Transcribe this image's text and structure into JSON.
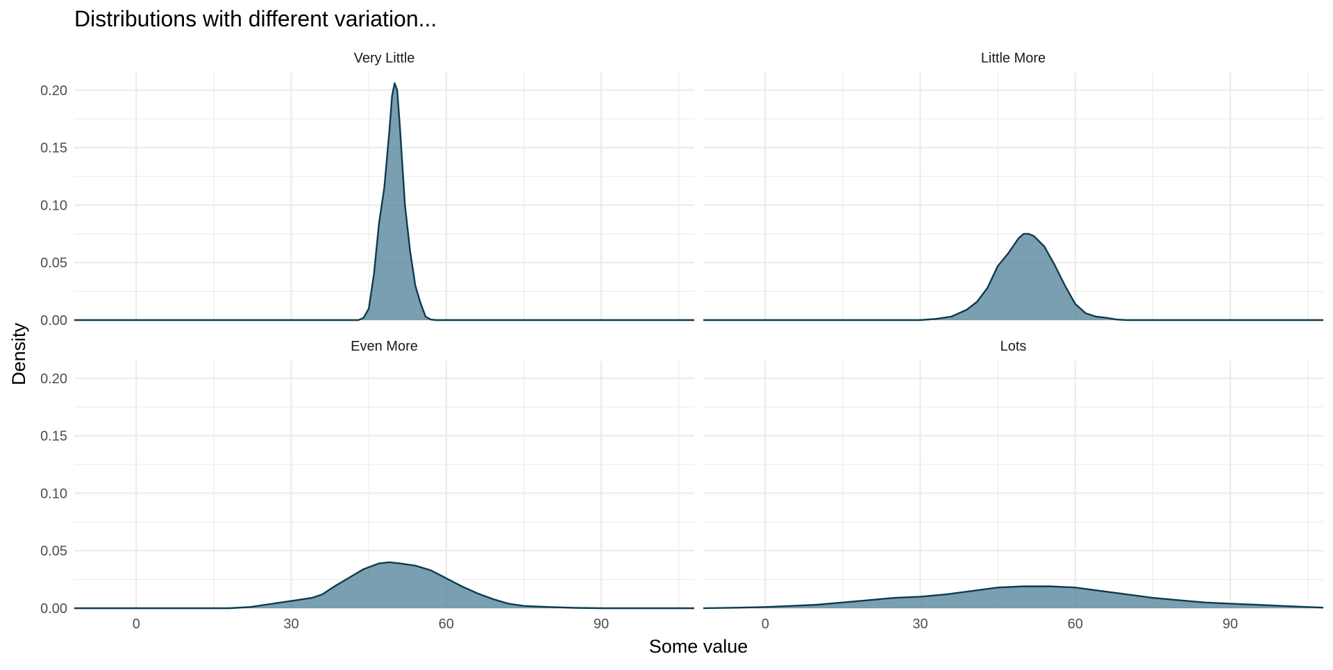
{
  "chart_data": {
    "type": "area",
    "title": "Distributions with different variation...",
    "xlabel": "Some value",
    "ylabel": "Density",
    "xlim": [
      -12,
      108
    ],
    "ylim": [
      0,
      0.215
    ],
    "x_ticks": [
      0,
      30,
      60,
      90
    ],
    "x_tick_labels": [
      "0",
      "30",
      "60",
      "90"
    ],
    "y_ticks": [
      0,
      0.05,
      0.1,
      0.15,
      0.2
    ],
    "y_tick_labels": [
      "0.00",
      "0.05",
      "0.10",
      "0.15",
      "0.20"
    ],
    "grid": true,
    "fill_color": "#4d7f96",
    "line_color": "#0d3a4f",
    "panels": [
      {
        "name": "Very Little",
        "points": [
          [
            -12,
            0
          ],
          [
            43,
            0
          ],
          [
            44,
            0.002
          ],
          [
            45,
            0.01
          ],
          [
            46,
            0.04
          ],
          [
            47,
            0.085
          ],
          [
            48,
            0.115
          ],
          [
            49,
            0.165
          ],
          [
            49.5,
            0.195
          ],
          [
            50,
            0.206
          ],
          [
            50.5,
            0.2
          ],
          [
            51,
            0.17
          ],
          [
            52,
            0.1
          ],
          [
            53,
            0.06
          ],
          [
            54,
            0.03
          ],
          [
            55,
            0.015
          ],
          [
            56,
            0.003
          ],
          [
            57,
            0.0005
          ],
          [
            58,
            0
          ],
          [
            108,
            0
          ]
        ]
      },
      {
        "name": "Little More",
        "points": [
          [
            -12,
            0
          ],
          [
            30,
            0
          ],
          [
            33,
            0.001
          ],
          [
            36,
            0.003
          ],
          [
            39,
            0.009
          ],
          [
            41,
            0.016
          ],
          [
            43,
            0.028
          ],
          [
            45,
            0.047
          ],
          [
            47,
            0.058
          ],
          [
            49,
            0.071
          ],
          [
            50,
            0.075
          ],
          [
            51,
            0.075
          ],
          [
            52,
            0.073
          ],
          [
            54,
            0.064
          ],
          [
            56,
            0.048
          ],
          [
            58,
            0.03
          ],
          [
            60,
            0.014
          ],
          [
            62,
            0.006
          ],
          [
            64,
            0.003
          ],
          [
            66,
            0.002
          ],
          [
            68,
            0.0005
          ],
          [
            70,
            0
          ],
          [
            108,
            0
          ]
        ]
      },
      {
        "name": "Even More",
        "points": [
          [
            -12,
            0
          ],
          [
            18,
            0
          ],
          [
            22,
            0.001
          ],
          [
            25,
            0.003
          ],
          [
            28,
            0.005
          ],
          [
            31,
            0.007
          ],
          [
            34,
            0.009
          ],
          [
            36,
            0.012
          ],
          [
            38,
            0.018
          ],
          [
            41,
            0.026
          ],
          [
            44,
            0.034
          ],
          [
            47,
            0.039
          ],
          [
            49,
            0.04
          ],
          [
            51,
            0.039
          ],
          [
            54,
            0.037
          ],
          [
            57,
            0.033
          ],
          [
            60,
            0.026
          ],
          [
            63,
            0.019
          ],
          [
            66,
            0.013
          ],
          [
            69,
            0.008
          ],
          [
            72,
            0.004
          ],
          [
            75,
            0.002
          ],
          [
            80,
            0.001
          ],
          [
            85,
            0.0003
          ],
          [
            90,
            0
          ],
          [
            108,
            0
          ]
        ]
      },
      {
        "name": "Lots",
        "points": [
          [
            -12,
            0
          ],
          [
            -5,
            0.0005
          ],
          [
            0,
            0.001
          ],
          [
            5,
            0.002
          ],
          [
            10,
            0.003
          ],
          [
            15,
            0.005
          ],
          [
            20,
            0.007
          ],
          [
            25,
            0.009
          ],
          [
            30,
            0.01
          ],
          [
            35,
            0.012
          ],
          [
            40,
            0.015
          ],
          [
            45,
            0.018
          ],
          [
            50,
            0.019
          ],
          [
            55,
            0.019
          ],
          [
            60,
            0.018
          ],
          [
            65,
            0.015
          ],
          [
            70,
            0.012
          ],
          [
            75,
            0.009
          ],
          [
            80,
            0.007
          ],
          [
            85,
            0.005
          ],
          [
            90,
            0.004
          ],
          [
            95,
            0.003
          ],
          [
            100,
            0.002
          ],
          [
            108,
            0.0005
          ]
        ]
      }
    ]
  }
}
